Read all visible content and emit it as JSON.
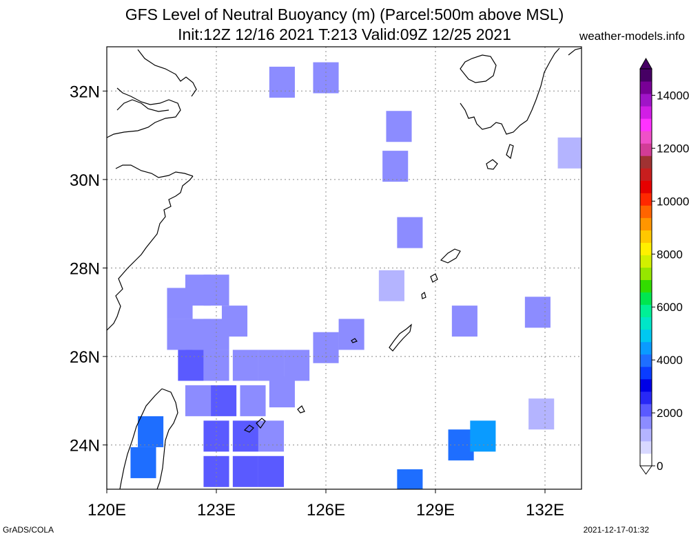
{
  "title_line1": "GFS Level of Neutral Buoyancy (m) (Parcel:500m above MSL)",
  "title_line2": "Init:12Z 12/16 2021 T:213 Valid:09Z 12/25 2021",
  "site": "weather-models.info",
  "credit": "GrADS/COLA",
  "timestamp": "2021-12-17-01:32",
  "chart_data": {
    "type": "heatmap",
    "title": "GFS Level of Neutral Buoyancy (m) (Parcel:500m above MSL)",
    "xlim": [
      120,
      133
    ],
    "ylim": [
      23,
      33
    ],
    "x_ticks": [
      120,
      123,
      126,
      129,
      132
    ],
    "x_tick_labels": [
      "120E",
      "123E",
      "126E",
      "129E",
      "132E"
    ],
    "y_ticks": [
      24,
      26,
      28,
      30,
      32
    ],
    "y_tick_labels": [
      "24N",
      "26N",
      "28N",
      "30N",
      "32N"
    ],
    "grid": true,
    "colorbar": {
      "min": 0,
      "max": 15000,
      "tick_values": [
        0,
        2000,
        4000,
        6000,
        8000,
        10000,
        12000,
        14000
      ],
      "tick_labels": [
        "0",
        "2000",
        "4000",
        "6000",
        "8000",
        "10000",
        "12000",
        "14000"
      ],
      "colors": [
        "#ffffff",
        "#d8d8ff",
        "#b4b4ff",
        "#8c8cff",
        "#5a5aff",
        "#2828f5",
        "#0000e6",
        "#0a3cff",
        "#1e6eff",
        "#0a9bff",
        "#00c8f0",
        "#00e6c8",
        "#00f096",
        "#00e650",
        "#32dc00",
        "#96e600",
        "#d2f000",
        "#fff000",
        "#ffc800",
        "#ff9600",
        "#ff6400",
        "#ff2800",
        "#e60000",
        "#c81e1e",
        "#a03232",
        "#d23c96",
        "#f050c8",
        "#ff32ff",
        "#d21ee6",
        "#a014c8",
        "#780096",
        "#460064"
      ]
    },
    "cells": [
      {
        "lon": 122.0,
        "lat": 27.2,
        "v": 1500
      },
      {
        "lon": 122.5,
        "lat": 27.5,
        "v": 1500
      },
      {
        "lon": 123.0,
        "lat": 27.5,
        "v": 1500
      },
      {
        "lon": 122.0,
        "lat": 26.5,
        "v": 1600
      },
      {
        "lon": 122.5,
        "lat": 26.5,
        "v": 1800
      },
      {
        "lon": 123.0,
        "lat": 26.5,
        "v": 1700
      },
      {
        "lon": 123.5,
        "lat": 26.8,
        "v": 1600
      },
      {
        "lon": 122.3,
        "lat": 25.8,
        "v": 2000
      },
      {
        "lon": 123.0,
        "lat": 25.8,
        "v": 1800
      },
      {
        "lon": 123.8,
        "lat": 25.8,
        "v": 1700
      },
      {
        "lon": 124.5,
        "lat": 25.8,
        "v": 1600
      },
      {
        "lon": 125.2,
        "lat": 25.8,
        "v": 1500
      },
      {
        "lon": 126.0,
        "lat": 26.2,
        "v": 1600
      },
      {
        "lon": 126.7,
        "lat": 26.5,
        "v": 1700
      },
      {
        "lon": 122.5,
        "lat": 25.0,
        "v": 1800
      },
      {
        "lon": 123.2,
        "lat": 25.0,
        "v": 1900
      },
      {
        "lon": 124.0,
        "lat": 25.0,
        "v": 1700
      },
      {
        "lon": 124.8,
        "lat": 25.2,
        "v": 1600
      },
      {
        "lon": 123.0,
        "lat": 24.2,
        "v": 1900
      },
      {
        "lon": 123.8,
        "lat": 24.2,
        "v": 2000
      },
      {
        "lon": 124.5,
        "lat": 24.2,
        "v": 1800
      },
      {
        "lon": 123.0,
        "lat": 23.4,
        "v": 2100
      },
      {
        "lon": 123.8,
        "lat": 23.4,
        "v": 2200
      },
      {
        "lon": 124.5,
        "lat": 23.4,
        "v": 2000
      },
      {
        "lon": 121.0,
        "lat": 23.6,
        "v": 4200
      },
      {
        "lon": 121.2,
        "lat": 24.3,
        "v": 4000
      },
      {
        "lon": 129.7,
        "lat": 24.0,
        "v": 4100
      },
      {
        "lon": 130.3,
        "lat": 24.2,
        "v": 4300
      },
      {
        "lon": 128.3,
        "lat": 23.1,
        "v": 4000
      },
      {
        "lon": 127.8,
        "lat": 27.6,
        "v": 1400
      },
      {
        "lon": 128.3,
        "lat": 28.8,
        "v": 1500
      },
      {
        "lon": 124.8,
        "lat": 32.2,
        "v": 1800
      },
      {
        "lon": 126.0,
        "lat": 32.3,
        "v": 1700
      },
      {
        "lon": 128.0,
        "lat": 31.2,
        "v": 1600
      },
      {
        "lon": 127.9,
        "lat": 30.3,
        "v": 1500
      },
      {
        "lon": 129.8,
        "lat": 26.8,
        "v": 1600
      },
      {
        "lon": 131.8,
        "lat": 27.0,
        "v": 1500
      },
      {
        "lon": 131.9,
        "lat": 24.7,
        "v": 1400
      },
      {
        "lon": 132.7,
        "lat": 30.6,
        "v": 1300
      }
    ]
  }
}
